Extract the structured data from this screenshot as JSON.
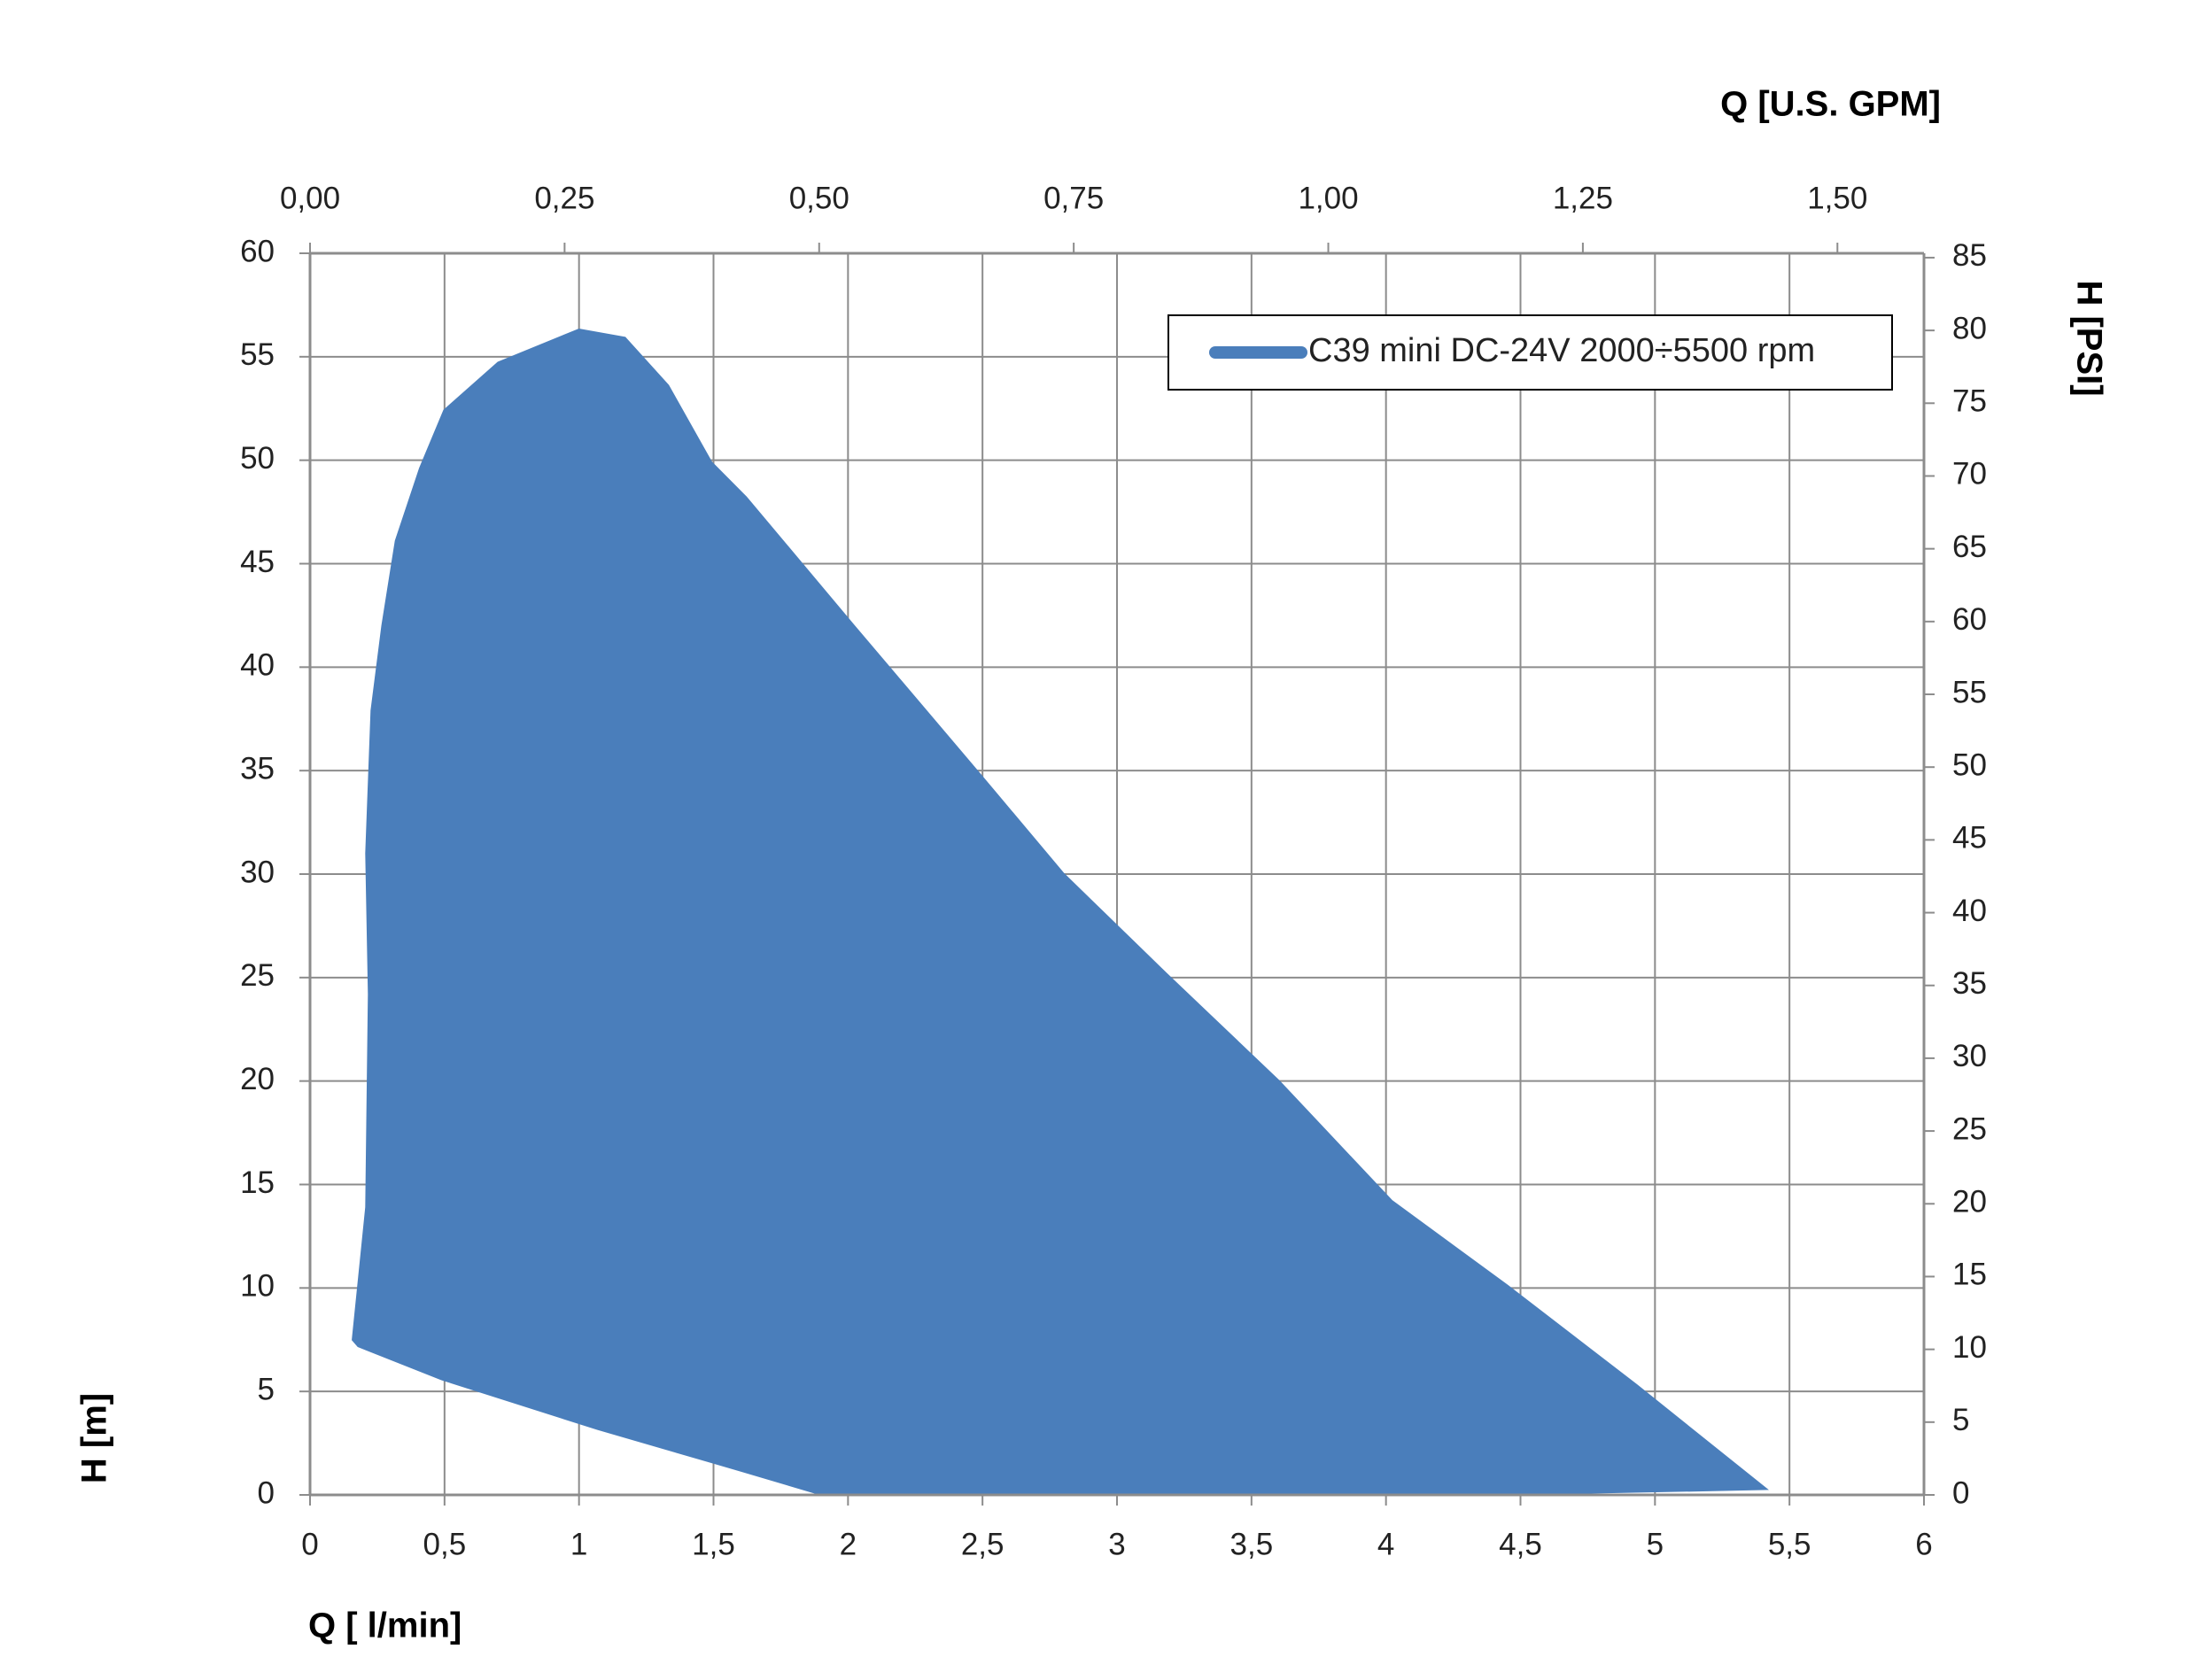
{
  "chart_data": {
    "type": "area",
    "x_label": "Q [ l/min]",
    "y_label": "H [m]",
    "x2_label": "Q  [U.S. GPM]",
    "y2_label": "H [PSI]",
    "x": [
      0.16,
      0.21,
      0.22,
      0.21,
      0.23,
      0.27,
      0.32,
      0.41,
      0.5,
      0.7,
      1.0,
      1.17,
      1.33,
      1.49,
      1.62,
      2.02,
      2.49,
      2.8,
      3.18,
      3.6,
      4.02,
      4.45,
      4.93,
      5.41,
      4.66,
      2.17,
      1.91,
      1.6,
      1.07,
      0.49,
      0.18
    ],
    "series": [
      {
        "name": "C39 mini DC-24V 2000÷5500 rpm",
        "color": "#4a7ebb",
        "values": [
          7.5,
          13.9,
          24.2,
          31,
          37.9,
          42,
          46.1,
          49.6,
          52.4,
          54.7,
          56.3,
          55.9,
          53.6,
          49.9,
          48.2,
          42,
          34.8,
          30,
          25.2,
          20,
          14.2,
          10.1,
          5.3,
          0.3,
          0.1,
          0,
          0,
          1.2,
          3.2,
          5.6,
          7.2
        ]
      }
    ],
    "xlim": [
      0,
      6
    ],
    "xticks": [
      0,
      {
        "value": 0.5,
        "label": "0,5"
      },
      1,
      {
        "value": 1.5,
        "label": "1,5"
      },
      2,
      {
        "value": 2.5,
        "label": "2,5"
      },
      3,
      {
        "value": 3.5,
        "label": "3,5"
      },
      4,
      {
        "value": 4.5,
        "label": "4,5"
      },
      5,
      {
        "value": 5.5,
        "label": "5,5"
      },
      6
    ],
    "ylim": [
      0,
      60
    ],
    "yticks": [
      0,
      5,
      10,
      15,
      20,
      25,
      30,
      35,
      40,
      45,
      50,
      55,
      60
    ],
    "x2lim": [
      0,
      1.585
    ],
    "x2ticks": [
      {
        "value": 0,
        "label": "0,00"
      },
      {
        "value": 0.25,
        "label": "0,25"
      },
      {
        "value": 0.5,
        "label": "0,50"
      },
      {
        "value": 0.75,
        "label": "0,75"
      },
      {
        "value": 1,
        "label": "1,00"
      },
      {
        "value": 1.25,
        "label": "1,25"
      },
      {
        "value": 1.5,
        "label": "1,50"
      }
    ],
    "y2lim": [
      0,
      85.3
    ],
    "y2ticks": [
      0,
      5,
      10,
      15,
      20,
      25,
      30,
      35,
      40,
      45,
      50,
      55,
      60,
      65,
      70,
      75,
      80,
      85
    ],
    "grid": true,
    "legend": "upper right"
  }
}
